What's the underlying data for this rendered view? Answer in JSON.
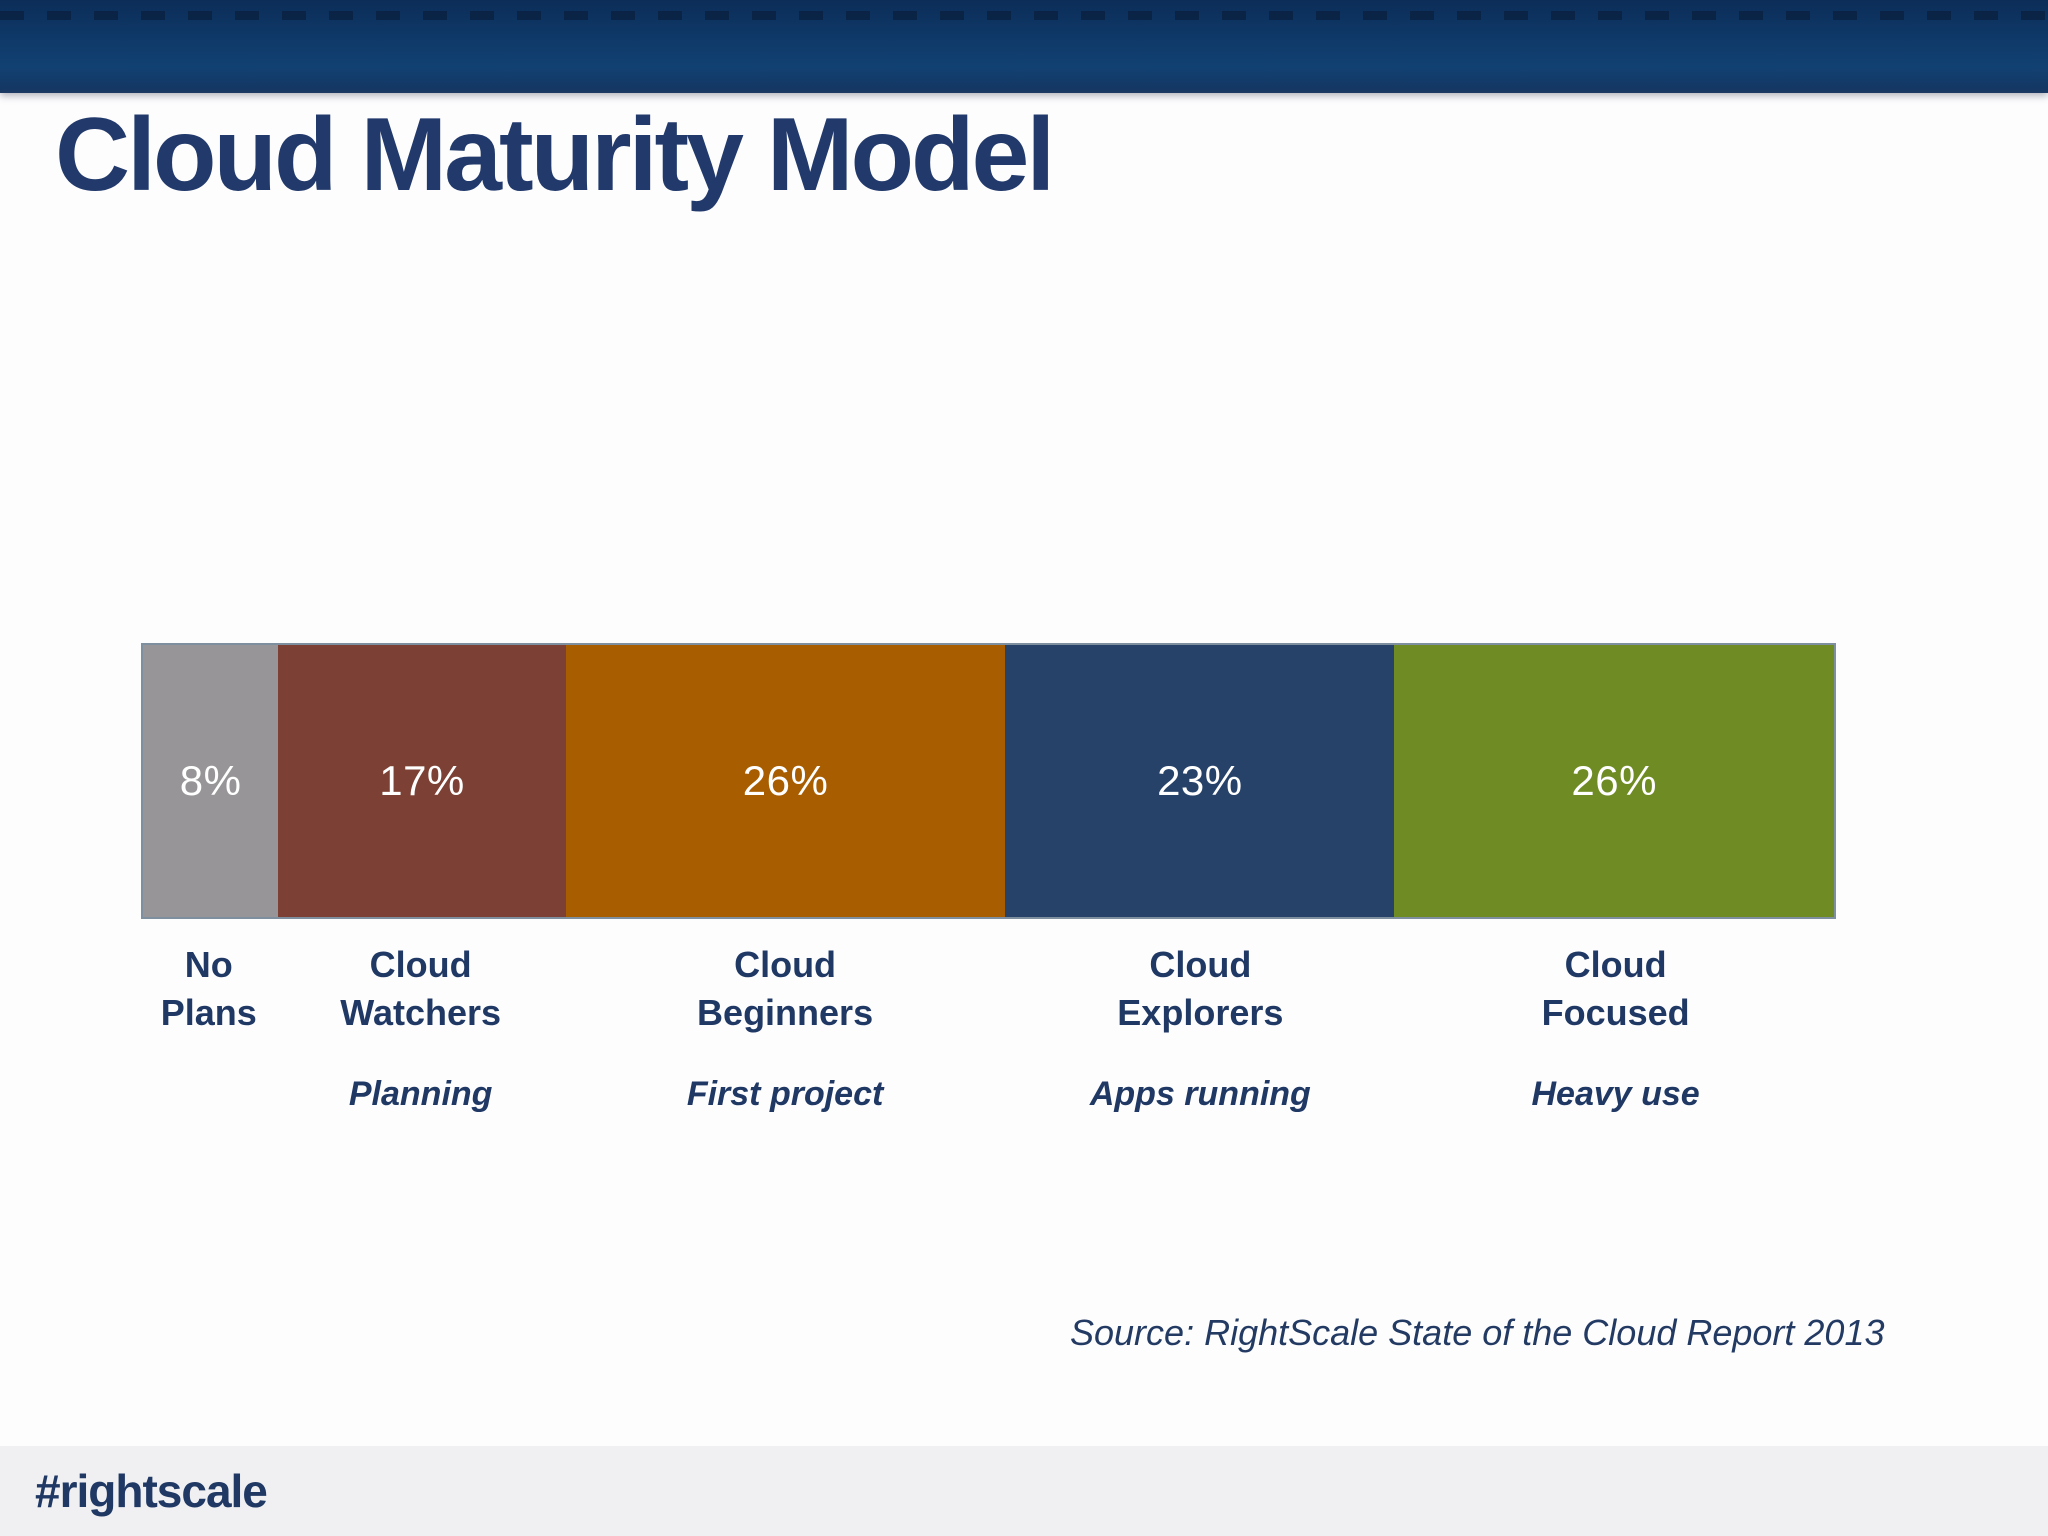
{
  "slide": {
    "title": "Cloud Maturity Model",
    "source_note": "Source: RightScale State of the Cloud Report 2013",
    "footer_hashtag": "#rightscale"
  },
  "theme": {
    "header_gradient_top": "#0c2d58",
    "header_gradient_bottom": "#114172",
    "title_color": "#223a6b",
    "label_color": "#1f3864",
    "percent_text_color": "#ffffff",
    "footer_background": "#f0f0f2",
    "bar_border_color": "#7e90a0",
    "slide_background": "#fdfdfe"
  },
  "chart_data": {
    "type": "bar",
    "variant": "horizontal-stacked-percentage",
    "title": "Cloud Maturity Model",
    "unit": "%",
    "categories": [
      "No Plans",
      "Cloud Watchers",
      "Cloud Beginners",
      "Cloud Explorers",
      "Cloud Focused"
    ],
    "category_lines": [
      [
        "No",
        "Plans"
      ],
      [
        "Cloud",
        "Watchers"
      ],
      [
        "Cloud",
        "Beginners"
      ],
      [
        "Cloud",
        "Explorers"
      ],
      [
        "Cloud",
        "Focused"
      ]
    ],
    "values": [
      8,
      17,
      26,
      23,
      26
    ],
    "labels": [
      "8%",
      "17%",
      "26%",
      "23%",
      "26%"
    ],
    "sublabels": [
      "",
      "Planning",
      "First project",
      "Apps running",
      "Heavy use"
    ],
    "colors": [
      "#979597",
      "#7c4034",
      "#a95d01",
      "#264269",
      "#6f8c24"
    ],
    "xlim": [
      0,
      100
    ],
    "grid": false,
    "legend": "none",
    "source": "Source: RightScale State of the Cloud Report 2013"
  }
}
